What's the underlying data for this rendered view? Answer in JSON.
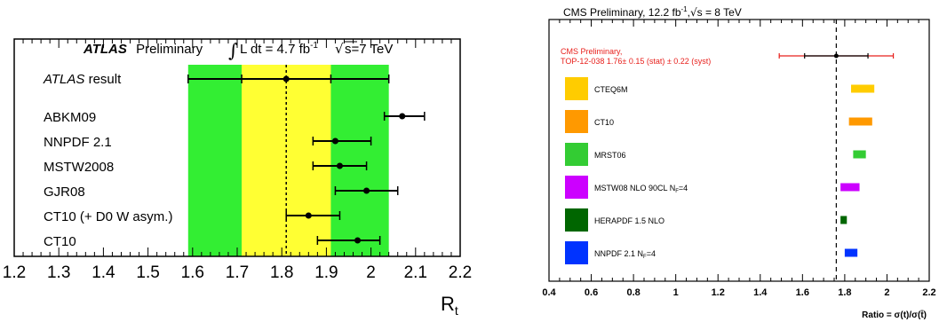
{
  "chart_data": [
    {
      "type": "scatter",
      "title": "Preliminary",
      "title_prefix": "ATLAS",
      "lumi_label": "L dt = 4.7 fb",
      "lumi_sup": "-1",
      "energy_label": "s=7 TeV",
      "xlabel": "R",
      "xlabel_sub": "t",
      "xlim": [
        1.2,
        2.2
      ],
      "xticks": [
        "1.2",
        "1.3",
        "1.4",
        "1.5",
        "1.6",
        "1.7",
        "1.8",
        "1.9",
        "2",
        "2.1",
        "2.2"
      ],
      "measurement": {
        "label": "ATLAS",
        "label_suffix": " result",
        "central": 1.81,
        "stat_low": 1.71,
        "stat_high": 1.91,
        "total_low": 1.59,
        "total_high": 2.04,
        "band_colors": {
          "total": "#33ee33",
          "stat": "#ffff33"
        }
      },
      "predictions": [
        {
          "name": "ABKM09",
          "value": 2.07,
          "err_low": 2.03,
          "err_high": 2.12
        },
        {
          "name": "NNPDF 2.1",
          "value": 1.92,
          "err_low": 1.87,
          "err_high": 2.0
        },
        {
          "name": "MSTW2008",
          "value": 1.93,
          "err_low": 1.87,
          "err_high": 1.99
        },
        {
          "name": "GJR08",
          "value": 1.99,
          "err_low": 1.92,
          "err_high": 2.06
        },
        {
          "name": "CT10 (+ D0 W asym.)",
          "value": 1.86,
          "err_low": 1.81,
          "err_high": 1.93
        },
        {
          "name": "CT10",
          "value": 1.97,
          "err_low": 1.88,
          "err_high": 2.02
        }
      ]
    },
    {
      "type": "bar",
      "header": "CMS Preliminary, 12.2 fb",
      "header_sup": "-1",
      "header_energy": "s = 8 TeV",
      "xlabel": "Ratio = σ(t)/σ(t̄)",
      "xlim": [
        0.4,
        2.2
      ],
      "xticks": [
        "0.4",
        "0.6",
        "0.8",
        "1",
        "1.2",
        "1.4",
        "1.6",
        "1.8",
        "2",
        "2.2"
      ],
      "measurement": {
        "label_line1": "CMS Preliminary,",
        "label_line2": "TOP-12-038 1.76± 0.15 (stat) ± 0.22 (syst)",
        "central": 1.76,
        "stat_low": 1.61,
        "stat_high": 1.91,
        "total_low": 1.49,
        "total_high": 2.03,
        "color": "#e8201c"
      },
      "predictions": [
        {
          "name": "CTEQ6M",
          "low": 1.83,
          "high": 1.94,
          "color": "#ffcc00"
        },
        {
          "name": "CT10",
          "low": 1.82,
          "high": 1.93,
          "color": "#ff9900"
        },
        {
          "name": "MRST06",
          "low": 1.84,
          "high": 1.9,
          "color": "#33cc33"
        },
        {
          "name": "MSTW08 NLO 90CL N",
          "name_sub": "F",
          "name_suffix": "=4",
          "low": 1.78,
          "high": 1.87,
          "color": "#cc00ff"
        },
        {
          "name": "HERAPDF 1.5 NLO",
          "low": 1.78,
          "high": 1.81,
          "color": "#006600"
        },
        {
          "name": "NNPDF 2.1 N",
          "name_sub": "F",
          "name_suffix": "=4",
          "low": 1.8,
          "high": 1.86,
          "color": "#0033ff"
        }
      ]
    }
  ]
}
